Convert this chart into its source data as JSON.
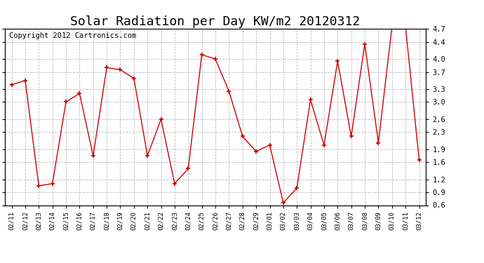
{
  "title": "Solar Radiation per Day KW/m2 20120312",
  "copyright": "Copyright 2012 Cartronics.com",
  "dates": [
    "02/11",
    "02/12",
    "02/13",
    "02/14",
    "02/15",
    "02/16",
    "02/17",
    "02/18",
    "02/19",
    "02/20",
    "02/21",
    "02/22",
    "02/23",
    "02/24",
    "02/25",
    "02/26",
    "02/27",
    "02/28",
    "02/29",
    "03/01",
    "03/02",
    "03/03",
    "03/04",
    "03/05",
    "03/06",
    "03/07",
    "03/08",
    "03/09",
    "03/10",
    "03/11",
    "03/12"
  ],
  "values": [
    3.4,
    3.5,
    1.05,
    1.1,
    3.0,
    3.2,
    1.75,
    3.8,
    3.75,
    3.55,
    1.75,
    2.6,
    1.1,
    1.45,
    4.1,
    4.0,
    3.25,
    2.2,
    1.85,
    2.0,
    0.65,
    1.0,
    3.05,
    2.0,
    3.95,
    2.2,
    4.35,
    2.05,
    4.75,
    4.75,
    1.65
  ],
  "line_color": "#cc0000",
  "marker_color": "#cc0000",
  "bg_color": "#ffffff",
  "grid_color": "#bbbbbb",
  "ylim": [
    0.6,
    4.7
  ],
  "yticks": [
    0.6,
    0.9,
    1.2,
    1.6,
    1.9,
    2.3,
    2.6,
    3.0,
    3.3,
    3.7,
    4.0,
    4.4,
    4.7
  ],
  "title_fontsize": 13,
  "copyright_fontsize": 7.5
}
